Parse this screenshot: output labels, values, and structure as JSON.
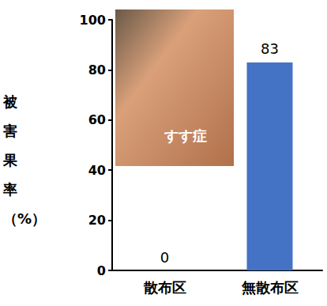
{
  "chart_data": {
    "type": "bar",
    "ylabel": "被害果率（%）",
    "categories": [
      "散布区",
      "無散布区"
    ],
    "values": [
      0,
      83
    ],
    "color": "#4472c4",
    "ylim": [
      0,
      100
    ],
    "yticks": [
      0,
      20,
      40,
      60,
      80,
      100
    ],
    "grid": false,
    "data_labels": true,
    "annotations": [
      "すす症"
    ]
  }
}
